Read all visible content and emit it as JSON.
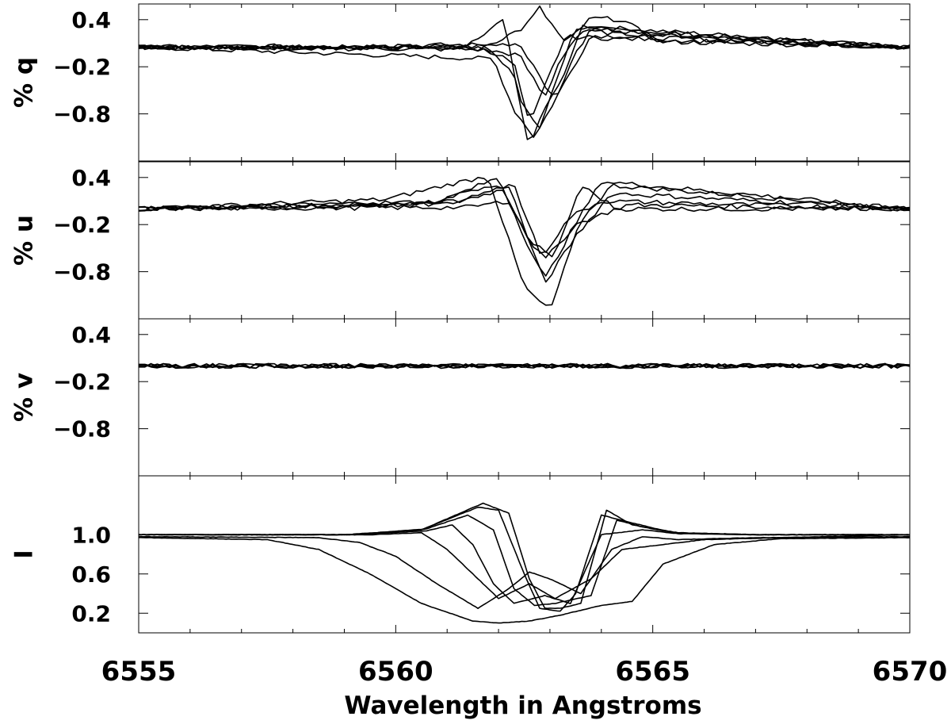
{
  "chart_data": {
    "type": "line",
    "xlabel": "Wavelength in Angstroms",
    "xlim": [
      6555,
      6570
    ],
    "xticks": [
      6555,
      6560,
      6565,
      6570
    ],
    "xtick_labels": [
      "6555",
      "6560",
      "6565",
      "6570"
    ],
    "panels": [
      {
        "id": "q",
        "ylabel": "% q",
        "ylim": [
          -1.4,
          0.6
        ],
        "yticks": [
          0.4,
          -0.2,
          -0.8
        ],
        "ytick_labels": [
          "0.4",
          "−0.2",
          "−0.8"
        ],
        "series": [
          {
            "x": [
              6555,
              6561.3,
              6562.1,
              6562.4,
              6562.8,
              6563.1,
              6563.5,
              6570
            ],
            "y": [
              0.05,
              0.05,
              0.4,
              -0.6,
              -1.0,
              -0.4,
              0.3,
              0.05
            ]
          },
          {
            "x": [
              6555,
              6561.8,
              6562.3,
              6562.6,
              6562.9,
              6563.3,
              6563.6,
              6570
            ],
            "y": [
              0.05,
              0.03,
              -0.3,
              -1.25,
              -0.7,
              -0.3,
              0.32,
              0.05
            ]
          },
          {
            "x": [
              6555,
              6561.0,
              6561.9,
              6562.3,
              6562.7,
              6563.2,
              6563.8,
              6570
            ],
            "y": [
              0.05,
              -0.08,
              -0.1,
              -0.75,
              -1.1,
              -0.5,
              0.2,
              0.05
            ]
          },
          {
            "x": [
              6555,
              6561.5,
              6562.4,
              6562.8,
              6563.1,
              6563.4,
              6563.8,
              6570
            ],
            "y": [
              0.05,
              0.06,
              0.1,
              -0.3,
              -0.65,
              -0.15,
              0.28,
              0.05
            ]
          },
          {
            "x": [
              6555,
              6561.8,
              6562.5,
              6562.8,
              6563.3,
              6563.8,
              6564.4,
              6565.1,
              6570
            ],
            "y": [
              0.05,
              0.08,
              0.3,
              0.55,
              0.1,
              0.42,
              0.4,
              0.12,
              0.05
            ]
          },
          {
            "x": [
              6555,
              6561.6,
              6562.4,
              6562.9,
              6563.2,
              6563.6,
              6570
            ],
            "y": [
              0.05,
              0.02,
              -0.05,
              -0.6,
              -0.1,
              0.25,
              0.05
            ]
          },
          {
            "x": [
              6555,
              6561.7,
              6562.3,
              6562.6,
              6562.9,
              6563.3,
              6570
            ],
            "y": [
              0.05,
              0.04,
              -0.15,
              -0.95,
              -0.45,
              0.18,
              0.05
            ]
          }
        ]
      },
      {
        "id": "u",
        "ylabel": "% u",
        "ylim": [
          -1.4,
          0.6
        ],
        "yticks": [
          0.4,
          -0.2,
          -0.8
        ],
        "ytick_labels": [
          "0.4",
          "−0.2",
          "−0.8"
        ],
        "series": [
          {
            "x": [
              6555,
              6560.5,
              6561.6,
              6562.3,
              6562.8,
              6563.1,
              6563.6,
              6564.3,
              6570
            ],
            "y": [
              0.0,
              0.05,
              0.25,
              0.3,
              -0.55,
              -0.6,
              0.3,
              0.0,
              0.0
            ]
          },
          {
            "x": [
              6555,
              6559.8,
              6561.1,
              6561.8,
              6562.0,
              6562.5,
              6563.0,
              6563.6,
              6564.2,
              6570
            ],
            "y": [
              0.0,
              0.12,
              0.32,
              0.42,
              0.0,
              -1.0,
              -1.3,
              -0.15,
              0.3,
              0.0
            ]
          },
          {
            "x": [
              6555,
              6560.8,
              6562.0,
              6562.6,
              6562.9,
              6563.4,
              6564.0,
              6570
            ],
            "y": [
              0.0,
              0.08,
              0.4,
              -0.5,
              -0.9,
              -0.3,
              0.35,
              0.0
            ]
          },
          {
            "x": [
              6555,
              6561.0,
              6562.1,
              6562.6,
              6562.9,
              6563.5,
              6564.5,
              6570
            ],
            "y": [
              0.0,
              0.06,
              0.25,
              -0.4,
              -0.65,
              -0.2,
              0.05,
              0.0
            ]
          },
          {
            "x": [
              6555,
              6561.2,
              6562.2,
              6562.7,
              6562.9,
              6563.5,
              6564.2,
              6570
            ],
            "y": [
              0.0,
              0.1,
              0.3,
              -0.6,
              -0.95,
              -0.35,
              0.2,
              0.0
            ]
          },
          {
            "x": [
              6555,
              6561.4,
              6562.2,
              6562.6,
              6562.9,
              6563.4,
              6564.0,
              6570
            ],
            "y": [
              0.0,
              0.02,
              0.1,
              -0.4,
              -0.55,
              -0.1,
              0.1,
              0.0
            ]
          }
        ]
      },
      {
        "id": "v",
        "ylabel": "% v",
        "ylim": [
          -1.4,
          0.6
        ],
        "yticks": [
          0.4,
          -0.2,
          -0.8
        ],
        "ytick_labels": [
          "0.4",
          "−0.2",
          "−0.8"
        ],
        "series": [
          {
            "x": [
              6555,
              6570
            ],
            "y": [
              0.0,
              0.0
            ]
          },
          {
            "x": [
              6555,
              6570
            ],
            "y": [
              0.0,
              0.0
            ]
          },
          {
            "x": [
              6555,
              6570
            ],
            "y": [
              0.0,
              0.0
            ]
          },
          {
            "x": [
              6555,
              6570
            ],
            "y": [
              0.0,
              0.0
            ]
          },
          {
            "x": [
              6555,
              6570
            ],
            "y": [
              0.0,
              0.0
            ]
          }
        ]
      },
      {
        "id": "I",
        "ylabel": "I",
        "ylim": [
          0.0,
          1.6
        ],
        "yticks": [
          1.0,
          0.6,
          0.2
        ],
        "ytick_labels": [
          "1.0",
          "0.6",
          "0.2"
        ],
        "series": [
          {
            "x": [
              6555,
              6559.0,
              6560.5,
              6561.7,
              6562.2,
              6562.6,
              6562.9,
              6563.2,
              6563.6,
              6564.1,
              6564.6,
              6565.4,
              6567.0,
              6570
            ],
            "y": [
              1.0,
              1.0,
              1.05,
              1.32,
              1.22,
              0.55,
              0.25,
              0.25,
              0.3,
              1.25,
              1.1,
              1.02,
              1.0,
              1.0
            ]
          },
          {
            "x": [
              6555,
              6559.0,
              6560.5,
              6561.6,
              6562.0,
              6562.5,
              6562.8,
              6563.2,
              6563.5,
              6564.0,
              6564.6,
              6565.4,
              6567.0,
              6570
            ],
            "y": [
              1.0,
              1.0,
              1.05,
              1.28,
              1.25,
              0.6,
              0.25,
              0.22,
              0.4,
              1.2,
              1.12,
              1.02,
              1.0,
              1.0
            ]
          },
          {
            "x": [
              6555,
              6559.2,
              6560.6,
              6561.4,
              6561.9,
              6562.3,
              6562.7,
              6563.1,
              6563.8,
              6564.3,
              6564.8,
              6565.5,
              6567.0,
              6570
            ],
            "y": [
              1.0,
              1.0,
              1.06,
              1.2,
              1.05,
              0.45,
              0.28,
              0.3,
              0.38,
              1.15,
              1.08,
              1.02,
              1.0,
              1.0
            ]
          },
          {
            "x": [
              6555,
              6559.2,
              6560.6,
              6561.1,
              6561.5,
              6561.9,
              6562.3,
              6562.9,
              6563.4,
              6564.0,
              6564.8,
              6565.5,
              6567.0,
              6570
            ],
            "y": [
              1.0,
              1.0,
              1.04,
              1.1,
              0.9,
              0.5,
              0.3,
              0.38,
              0.3,
              1.0,
              1.05,
              1.01,
              1.0,
              1.0
            ]
          },
          {
            "x": [
              6555,
              6559.5,
              6560.5,
              6561.0,
              6561.5,
              6562.0,
              6562.6,
              6563.1,
              6563.8,
              6564.4,
              6565.2,
              6566.0,
              6567.5,
              6570
            ],
            "y": [
              1.0,
              1.0,
              1.02,
              0.85,
              0.6,
              0.35,
              0.5,
              0.35,
              0.55,
              0.85,
              0.9,
              0.95,
              0.97,
              1.0
            ]
          },
          {
            "x": [
              6555,
              6558.5,
              6559.3,
              6560.0,
              6560.8,
              6561.6,
              6562.2,
              6562.6,
              6563.0,
              6563.6,
              6564.2,
              6564.8,
              6565.5,
              6567.0,
              6570
            ],
            "y": [
              0.98,
              0.97,
              0.92,
              0.78,
              0.5,
              0.25,
              0.45,
              0.62,
              0.55,
              0.4,
              0.85,
              0.98,
              0.95,
              0.97,
              0.98
            ]
          },
          {
            "x": [
              6555,
              6557.5,
              6558.5,
              6559.5,
              6560.5,
              6561.5,
              6562.0,
              6562.6,
              6563.2,
              6564.0,
              6564.6,
              6565.2,
              6566.2,
              6567.5,
              6570
            ],
            "y": [
              0.97,
              0.95,
              0.85,
              0.6,
              0.3,
              0.12,
              0.1,
              0.12,
              0.18,
              0.28,
              0.32,
              0.7,
              0.9,
              0.96,
              0.97
            ]
          }
        ]
      }
    ]
  }
}
